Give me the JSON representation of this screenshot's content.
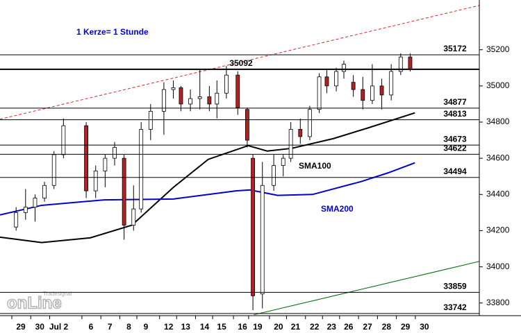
{
  "chart_data": {
    "type": "candlestick",
    "annotation": "1 Kerze= 1 Stunde",
    "watermark": {
      "brand": "Tradesignal",
      "name": "onLine"
    },
    "xlim": [
      -1.1,
      24.2
    ],
    "ylim": [
      33730,
      35475
    ],
    "yticks": [
      33800,
      34000,
      34200,
      34400,
      34600,
      34800,
      35000,
      35200
    ],
    "xticks": [
      {
        "value": 0,
        "label": "29"
      },
      {
        "value": 1,
        "label": "30"
      },
      {
        "value": 2,
        "label": "Jul 2"
      },
      {
        "value": 3.7,
        "label": "6"
      },
      {
        "value": 4.7,
        "label": "7"
      },
      {
        "value": 5.7,
        "label": "8"
      },
      {
        "value": 6.6,
        "label": "9"
      },
      {
        "value": 7.8,
        "label": "12"
      },
      {
        "value": 8.7,
        "label": "13"
      },
      {
        "value": 9.7,
        "label": "14"
      },
      {
        "value": 10.6,
        "label": "15"
      },
      {
        "value": 11.7,
        "label": "16"
      },
      {
        "value": 12.5,
        "label": "19"
      },
      {
        "value": 13.6,
        "label": "20"
      },
      {
        "value": 14.5,
        "label": "21"
      },
      {
        "value": 15.5,
        "label": "22"
      },
      {
        "value": 16.4,
        "label": "23"
      },
      {
        "value": 17.3,
        "label": "26"
      },
      {
        "value": 18.3,
        "label": "27"
      },
      {
        "value": 19.3,
        "label": "28"
      },
      {
        "value": 20.3,
        "label": "29"
      },
      {
        "value": 21.3,
        "label": "30"
      }
    ],
    "up_color": "#ffffff",
    "down_color": "#b22222",
    "candles": {
      "x": [
        -0.25,
        0.25,
        0.75,
        1.25,
        1.75,
        2.25,
        3.45,
        3.95,
        4.45,
        4.95,
        5.45,
        5.95,
        6.35,
        6.85,
        7.55,
        8.05,
        8.45,
        8.95,
        9.45,
        9.95,
        10.35,
        10.85,
        11.45,
        11.95,
        12.25,
        12.75,
        13.35,
        13.85,
        14.25,
        14.75,
        15.25,
        15.75,
        16.15,
        16.65,
        17.05,
        17.55,
        18.05,
        18.55,
        19.05,
        19.55,
        20.05,
        20.55
      ],
      "open": [
        34220,
        34300,
        34330,
        34380,
        34450,
        34620,
        34780,
        34420,
        34530,
        34600,
        34600,
        34230,
        34320,
        34760,
        34860,
        34980,
        34990,
        34900,
        34930,
        34940,
        34900,
        34960,
        35060,
        34870,
        34600,
        33850,
        34450,
        34560,
        34600,
        34760,
        34720,
        34870,
        35050,
        35000,
        35080,
        35020,
        34980,
        34920,
        35000,
        34950,
        35080,
        35160
      ],
      "high": [
        34330,
        34430,
        34400,
        34470,
        34640,
        34820,
        34800,
        34560,
        34620,
        34690,
        34620,
        34450,
        34800,
        34900,
        35020,
        35030,
        35000,
        34980,
        35090,
        35000,
        35030,
        35110,
        35080,
        34880,
        34620,
        34580,
        34620,
        34620,
        34800,
        34820,
        34890,
        35070,
        35090,
        35100,
        35140,
        35060,
        35050,
        35120,
        35040,
        35120,
        35180,
        35180
      ],
      "low": [
        34200,
        34260,
        34250,
        34360,
        34430,
        34600,
        34380,
        34380,
        34440,
        34560,
        34150,
        34200,
        34300,
        34700,
        34730,
        34930,
        34860,
        34860,
        34870,
        34860,
        34820,
        34930,
        34840,
        34660,
        33760,
        33770,
        34420,
        34500,
        34580,
        34680,
        34700,
        34850,
        34960,
        34970,
        35040,
        34940,
        34870,
        34900,
        34870,
        34920,
        35060,
        35080
      ],
      "close": [
        34300,
        34330,
        34380,
        34450,
        34620,
        34780,
        34420,
        34530,
        34600,
        34660,
        34230,
        34320,
        34760,
        34860,
        34980,
        34990,
        34900,
        34930,
        34940,
        34900,
        34960,
        35060,
        34880,
        34700,
        33840,
        34450,
        34560,
        34600,
        34760,
        34720,
        34870,
        35050,
        35000,
        35080,
        35120,
        34980,
        34920,
        35000,
        34950,
        35080,
        35160,
        35092
      ]
    },
    "series": [
      {
        "name": "SMA100",
        "color": "#000000",
        "x": [
          -1.1,
          1.1,
          3.66,
          5.86,
          8.06,
          9.89,
          12.0,
          13.0,
          14.3,
          16.5,
          18.3,
          20.8
        ],
        "values": [
          34164,
          34134,
          34160,
          34230,
          34440,
          34594,
          34670,
          34640,
          34655,
          34709,
          34767,
          34851
        ]
      },
      {
        "name": "SMA200",
        "color": "#0000cc",
        "x": [
          -1.1,
          1.1,
          4.4,
          8.06,
          11.36,
          12.1,
          13.55,
          15.4,
          17.95,
          19.4,
          20.8
        ],
        "values": [
          34287,
          34340,
          34370,
          34375,
          34420,
          34425,
          34395,
          34400,
          34471,
          34520,
          34575
        ]
      }
    ],
    "trend_lines": [
      {
        "color": "#dd2222",
        "dashed": true,
        "x": [
          -1.1,
          24.2
        ],
        "values": [
          34816,
          35445
        ]
      },
      {
        "color": "#006600",
        "dashed": false,
        "x": [
          12.3,
          24.2
        ],
        "values": [
          33735,
          34030
        ]
      }
    ],
    "levels": [
      35172,
      35092,
      34877,
      34813,
      34673,
      34622,
      34494,
      33859,
      33742
    ]
  }
}
